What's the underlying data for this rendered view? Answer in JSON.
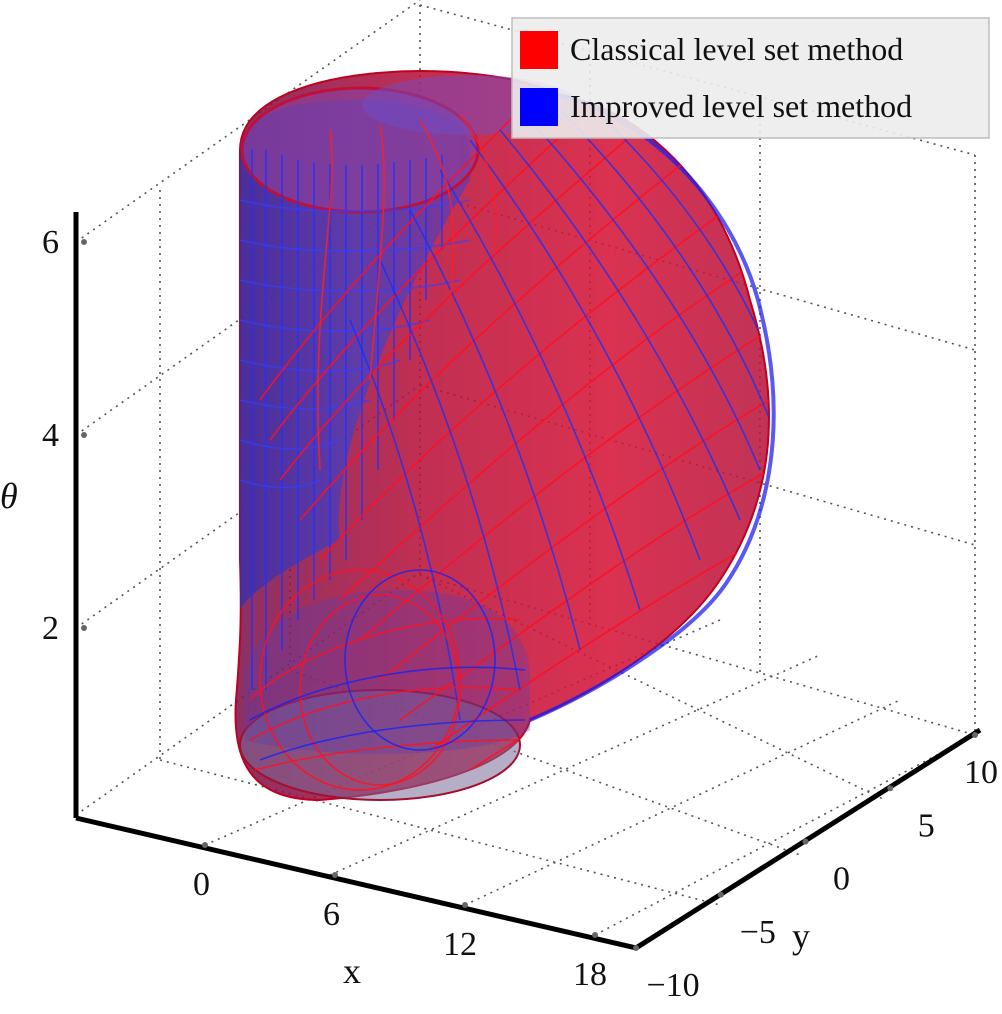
{
  "chart_data": {
    "type": "surface3d",
    "x_axis": {
      "label": "x",
      "ticks": [
        0,
        6,
        12,
        18
      ],
      "range": [
        -6,
        21
      ]
    },
    "y_axis": {
      "label": "y",
      "ticks": [
        -10,
        -5,
        0,
        5,
        10
      ],
      "range": [
        -10,
        10
      ]
    },
    "z_axis": {
      "label": "θ",
      "ticks": [
        2,
        4,
        6
      ],
      "range": [
        0,
        6.3
      ]
    },
    "grid": true,
    "legend": {
      "placement": "top-right",
      "entries": [
        {
          "label": "Classical level set method",
          "color": "#ff0000"
        },
        {
          "label": "Improved level set method",
          "color": "#0000ff"
        }
      ]
    },
    "series": [
      {
        "name": "Classical level set method",
        "color": "#ff0000",
        "surface": "reachable-set boundary (translucent red)"
      },
      {
        "name": "Improved level set method",
        "color": "#0000ff",
        "surface": "reachable-set boundary (translucent blue)"
      }
    ]
  }
}
